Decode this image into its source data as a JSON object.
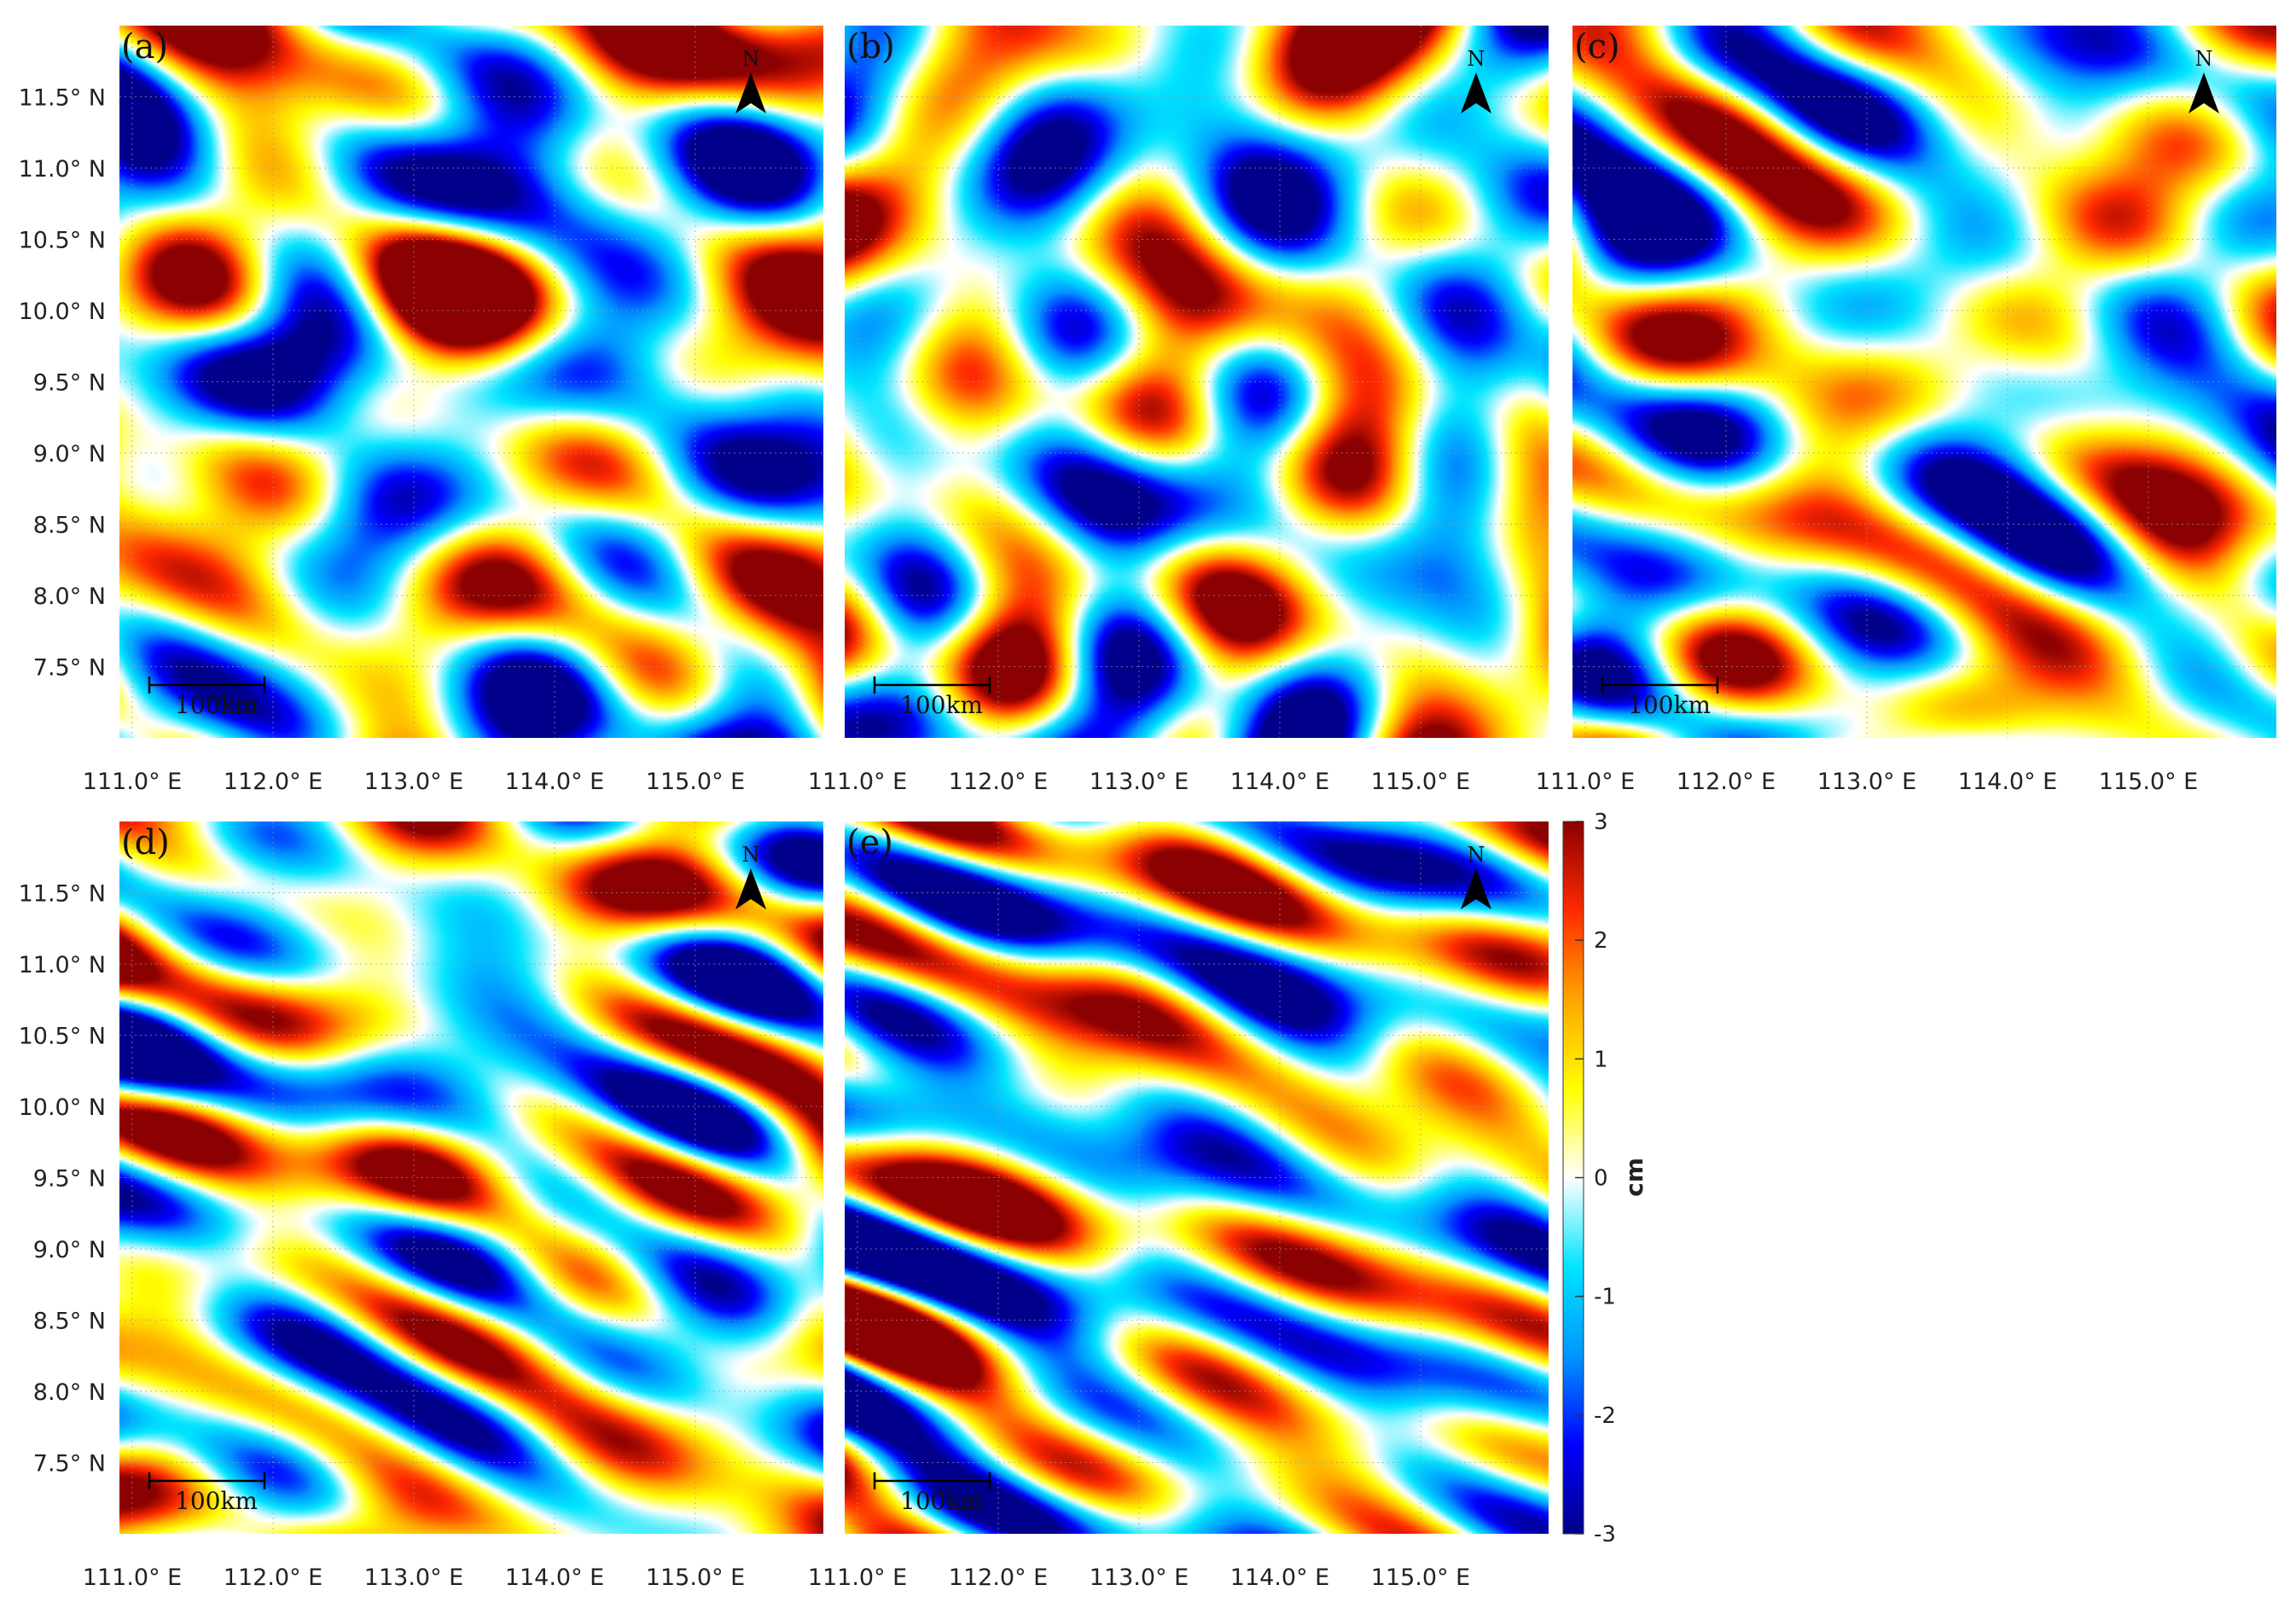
{
  "figure": {
    "panels": [
      {
        "id": "a",
        "label": "(a)",
        "seed": 11,
        "streak": 0.25
      },
      {
        "id": "b",
        "label": "(b)",
        "seed": 23,
        "streak": 0.15
      },
      {
        "id": "c",
        "label": "(c)",
        "seed": 37,
        "streak": 0.45
      },
      {
        "id": "d",
        "label": "(d)",
        "seed": 53,
        "streak": 0.55
      },
      {
        "id": "e",
        "label": "(e)",
        "seed": 71,
        "streak": 0.95
      }
    ],
    "lat_ticks": [
      "11.5° N",
      "11.0° N",
      "10.5° N",
      "10.0° N",
      "9.5° N",
      "9.0° N",
      "8.5° N",
      "8.0° N",
      "7.5° N"
    ],
    "lon_ticks": [
      "111.0° E",
      "112.0° E",
      "113.0° E",
      "114.0° E",
      "115.0° E"
    ],
    "scale_bar_label": "100km",
    "north_label": "N",
    "colorbar": {
      "label": "cm",
      "ticks": [
        "3",
        "2",
        "1",
        "0",
        "-1",
        "-2",
        "-3"
      ],
      "min": -3,
      "max": 3,
      "colors": [
        "#00008b",
        "#0000ff",
        "#0096ff",
        "#00e5ff",
        "#ffffff",
        "#ffff00",
        "#ffa500",
        "#ff2a00",
        "#8b0000"
      ]
    }
  }
}
